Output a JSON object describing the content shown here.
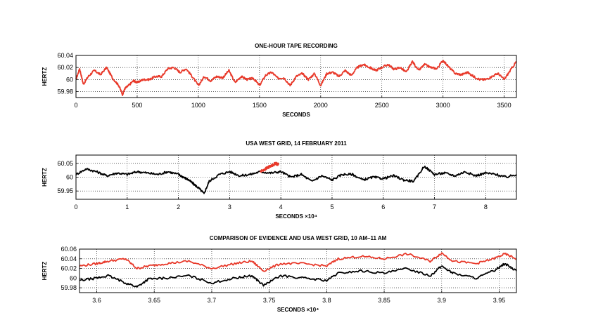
{
  "colors": {
    "evidence": "#e8392a",
    "grid": "#000000",
    "background": "#ffffff"
  },
  "chart_data": [
    {
      "type": "line",
      "title": "ONE-HOUR TAPE RECORDING",
      "xlabel": "SECONDS",
      "ylabel": "HERTZ",
      "xlim": [
        0,
        3600
      ],
      "ylim": [
        59.97,
        60.04
      ],
      "grid": true,
      "x_ticks": [
        0,
        500,
        1000,
        1500,
        2000,
        2500,
        3000,
        3500
      ],
      "x_tick_labels": [
        "0",
        "500",
        "1000",
        "1500",
        "2000",
        "2500",
        "3000",
        "3500"
      ],
      "y_ticks": [
        59.98,
        60.0,
        60.02,
        60.04
      ],
      "y_tick_labels": [
        "59.98",
        "60",
        "60.02",
        "60.04"
      ],
      "series": [
        {
          "color": "#e8392a",
          "x": [
            0,
            30,
            60,
            100,
            150,
            200,
            250,
            300,
            350,
            380,
            400,
            430,
            470,
            500,
            550,
            600,
            650,
            700,
            750,
            800,
            850,
            900,
            950,
            1000,
            1050,
            1100,
            1150,
            1200,
            1250,
            1300,
            1350,
            1400,
            1450,
            1500,
            1550,
            1600,
            1650,
            1700,
            1750,
            1800,
            1850,
            1900,
            1950,
            2000,
            2050,
            2100,
            2150,
            2200,
            2250,
            2300,
            2350,
            2400,
            2450,
            2500,
            2550,
            2600,
            2650,
            2700,
            2750,
            2800,
            2850,
            2900,
            2950,
            3000,
            3050,
            3100,
            3150,
            3200,
            3250,
            3300,
            3350,
            3400,
            3450,
            3500,
            3550,
            3600
          ],
          "values": [
            60.0,
            60.018,
            59.992,
            60.005,
            60.015,
            60.008,
            60.02,
            60.002,
            59.99,
            59.975,
            59.985,
            59.99,
            59.998,
            59.995,
            60.0,
            60.0,
            60.005,
            60.005,
            60.018,
            60.02,
            60.012,
            60.018,
            60.005,
            59.99,
            60.005,
            59.998,
            60.005,
            60.003,
            60.015,
            59.995,
            60.005,
            60.0,
            60.002,
            59.99,
            60.007,
            60.012,
            60.002,
            60.003,
            59.99,
            60.005,
            60.01,
            60.0,
            60.01,
            59.99,
            60.01,
            60.012,
            60.005,
            60.015,
            60.007,
            60.02,
            60.025,
            60.02,
            60.015,
            60.02,
            60.025,
            60.017,
            60.02,
            60.012,
            60.03,
            60.015,
            60.025,
            60.02,
            60.018,
            60.032,
            60.02,
            60.01,
            60.008,
            60.012,
            60.005,
            60.0,
            60.0,
            60.005,
            60.01,
            60.0,
            60.015,
            60.03
          ]
        }
      ]
    },
    {
      "type": "line",
      "title": "USA WEST GRID, 14 FEBRUARY 2011",
      "xlabel": "SECONDS ×10⁴",
      "ylabel": "HERTZ",
      "xlim": [
        0,
        8.6
      ],
      "ylim": [
        59.92,
        60.08
      ],
      "grid": true,
      "x_ticks": [
        0,
        1,
        2,
        3,
        4,
        5,
        6,
        7,
        8
      ],
      "x_tick_labels": [
        "0",
        "1",
        "2",
        "3",
        "4",
        "5",
        "6",
        "7",
        "8"
      ],
      "y_ticks": [
        59.95,
        60.0,
        60.05
      ],
      "y_tick_labels": [
        "59.95",
        "60",
        "60.05"
      ],
      "series": [
        {
          "color": "#000000",
          "x": [
            0,
            0.2,
            0.4,
            0.6,
            0.8,
            1.0,
            1.2,
            1.4,
            1.6,
            1.8,
            2.0,
            2.1,
            2.2,
            2.3,
            2.4,
            2.5,
            2.6,
            2.8,
            3.0,
            3.2,
            3.4,
            3.6,
            3.8,
            4.0,
            4.2,
            4.4,
            4.6,
            4.8,
            5.0,
            5.2,
            5.4,
            5.6,
            5.8,
            6.0,
            6.2,
            6.4,
            6.6,
            6.8,
            7.0,
            7.2,
            7.4,
            7.6,
            7.8,
            8.0,
            8.2,
            8.4,
            8.6
          ],
          "values": [
            60.01,
            60.03,
            60.02,
            60.005,
            60.015,
            60.01,
            60.02,
            60.015,
            60.01,
            60.02,
            60.01,
            60.0,
            59.99,
            59.975,
            59.96,
            59.94,
            59.985,
            60.01,
            60.02,
            60.005,
            60.01,
            60.02,
            60.015,
            60.02,
            60.0,
            60.01,
            59.985,
            60.005,
            59.99,
            60.01,
            60.01,
            59.99,
            60.0,
            59.995,
            60.005,
            59.99,
            59.985,
            60.04,
            60.01,
            60.015,
            60.005,
            60.02,
            60.005,
            60.015,
            60.01,
            60.0,
            60.01
          ]
        },
        {
          "color": "#e8392a",
          "x": [
            3.6,
            3.7,
            3.8,
            3.9,
            3.96
          ],
          "values": [
            60.02,
            60.03,
            60.04,
            60.05,
            60.045
          ]
        }
      ]
    },
    {
      "type": "line",
      "title": "COMPARISON OF EVIDENCE AND USA WEST GRID, 10 AM–11 AM",
      "xlabel": "SECONDS ×10⁴",
      "ylabel": "HERTZ",
      "xlim": [
        3.585,
        3.965
      ],
      "ylim": [
        59.97,
        60.06
      ],
      "grid": true,
      "x_ticks": [
        3.6,
        3.65,
        3.7,
        3.75,
        3.8,
        3.85,
        3.9,
        3.95
      ],
      "x_tick_labels": [
        "3.6",
        "3.65",
        "3.7",
        "3.75",
        "3.8",
        "3.85",
        "3.9",
        "3.95"
      ],
      "y_ticks": [
        59.98,
        60.0,
        60.02,
        60.04,
        60.06
      ],
      "y_tick_labels": [
        "59.98",
        "60",
        "60.02",
        "60.04",
        "60.06"
      ],
      "series": [
        {
          "color": "#e8392a",
          "x": [
            3.585,
            3.6,
            3.61,
            3.625,
            3.635,
            3.645,
            3.66,
            3.68,
            3.7,
            3.72,
            3.735,
            3.745,
            3.76,
            3.78,
            3.8,
            3.81,
            3.83,
            3.85,
            3.87,
            3.89,
            3.9,
            3.91,
            3.93,
            3.945,
            3.955,
            3.965
          ],
          "values": [
            60.025,
            60.03,
            60.035,
            60.04,
            60.02,
            60.025,
            60.03,
            60.035,
            60.02,
            60.03,
            60.035,
            60.015,
            60.03,
            60.03,
            60.025,
            60.04,
            60.045,
            60.04,
            60.05,
            60.035,
            60.052,
            60.035,
            60.03,
            60.04,
            60.05,
            60.04
          ]
        },
        {
          "color": "#000000",
          "x": [
            3.585,
            3.6,
            3.61,
            3.625,
            3.635,
            3.645,
            3.66,
            3.68,
            3.7,
            3.72,
            3.735,
            3.745,
            3.76,
            3.78,
            3.8,
            3.81,
            3.83,
            3.85,
            3.87,
            3.89,
            3.9,
            3.91,
            3.93,
            3.945,
            3.955,
            3.965
          ],
          "values": [
            59.995,
            60.0,
            60.005,
            59.99,
            59.982,
            59.998,
            60.0,
            60.005,
            59.99,
            60.0,
            60.005,
            59.985,
            60.005,
            60.0,
            59.995,
            60.01,
            60.015,
            60.01,
            60.02,
            60.005,
            60.025,
            60.01,
            60.0,
            60.015,
            60.03,
            60.015
          ]
        }
      ]
    }
  ]
}
